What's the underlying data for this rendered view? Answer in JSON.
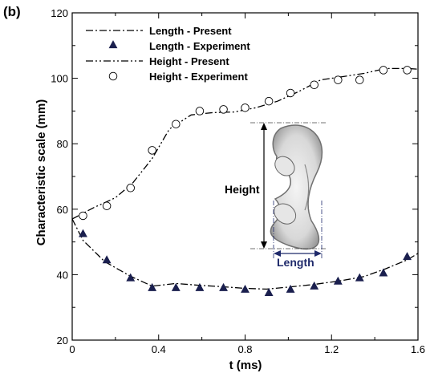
{
  "chart_data": {
    "type": "line",
    "panel_label": "(b)",
    "xlabel": "t (ms)",
    "ylabel": "Characteristic scale (mm)",
    "xlim": [
      0,
      1.6
    ],
    "ylim": [
      20,
      120
    ],
    "x_ticks": [
      0,
      0.4,
      0.8,
      1.2,
      1.6
    ],
    "x_tick_labels": [
      "0",
      "0.4",
      "0.8",
      "1.2",
      "1.6"
    ],
    "y_ticks": [
      20,
      40,
      60,
      80,
      100,
      120
    ],
    "y_tick_labels": [
      "20",
      "40",
      "60",
      "80",
      "100",
      "120"
    ],
    "grid": false,
    "legend_position": "top-left",
    "series": [
      {
        "name": "Length - Present",
        "style": "dash-dot line",
        "color": "#000000",
        "x": [
          0,
          0.05,
          0.15,
          0.27,
          0.37,
          0.48,
          0.58,
          0.7,
          0.8,
          0.9,
          1.0,
          1.12,
          1.25,
          1.35,
          1.45,
          1.55,
          1.6
        ],
        "y": [
          57,
          50.5,
          44,
          39.5,
          36.5,
          37.3,
          36.8,
          36.3,
          35.8,
          35.6,
          36.2,
          37,
          38.2,
          39.4,
          41.8,
          44.5,
          46.5
        ]
      },
      {
        "name": "Length - Experiment",
        "style": "filled triangle markers",
        "color": "#1a1f4e",
        "x": [
          0.05,
          0.16,
          0.27,
          0.37,
          0.48,
          0.59,
          0.7,
          0.8,
          0.91,
          1.01,
          1.12,
          1.23,
          1.33,
          1.44,
          1.55
        ],
        "y": [
          52.5,
          44.5,
          39,
          36,
          36,
          36,
          36,
          35.5,
          34.5,
          35.5,
          36.5,
          38,
          39,
          40.5,
          45.5
        ]
      },
      {
        "name": "Height - Present",
        "style": "dash-dot-dot line",
        "color": "#000000",
        "x": [
          0,
          0.1,
          0.2,
          0.28,
          0.37,
          0.45,
          0.55,
          0.65,
          0.75,
          0.85,
          0.95,
          1.05,
          1.15,
          1.25,
          1.35,
          1.45,
          1.55,
          1.6
        ],
        "y": [
          57,
          60.5,
          63.5,
          68,
          75.5,
          84.5,
          88.8,
          89.5,
          89.7,
          91,
          93,
          96,
          99.5,
          100.5,
          101.5,
          103,
          103,
          102.8
        ]
      },
      {
        "name": "Height - Experiment",
        "style": "open circle markers",
        "color": "#000000",
        "x": [
          0.05,
          0.16,
          0.27,
          0.37,
          0.48,
          0.59,
          0.7,
          0.8,
          0.91,
          1.01,
          1.12,
          1.23,
          1.33,
          1.44,
          1.55
        ],
        "y": [
          58,
          61,
          66.5,
          78,
          86,
          90,
          90.5,
          91,
          93,
          95.5,
          98,
          99.5,
          99.5,
          102.5,
          102.5
        ]
      }
    ],
    "inset": {
      "height_label": "Height",
      "length_label": "Length"
    }
  }
}
